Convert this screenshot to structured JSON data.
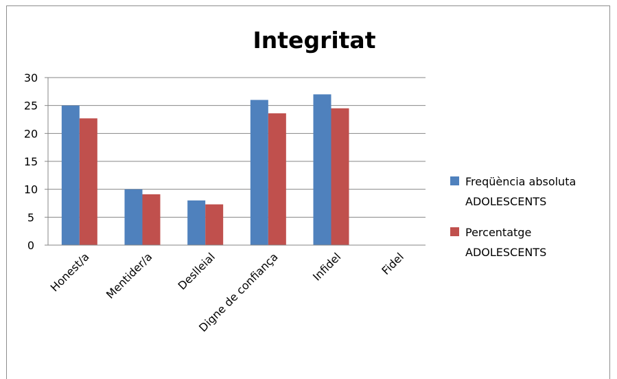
{
  "chart_data": {
    "type": "bar",
    "title": "Integritat",
    "categories": [
      "Honest/a",
      "Mentider/a",
      "Deslleial",
      "Digne de confiança",
      "Infidel",
      "Fidel"
    ],
    "series": [
      {
        "name_lines": [
          "Freqüència absoluta",
          "ADOLESCENTS"
        ],
        "color": "#4f81bd",
        "values": [
          25,
          10,
          8,
          26,
          27,
          0
        ]
      },
      {
        "name_lines": [
          "Percentatge",
          "ADOLESCENTS"
        ],
        "color": "#c0504d",
        "values": [
          22.7,
          9.1,
          7.3,
          23.6,
          24.5,
          0
        ]
      }
    ],
    "ylim": [
      0,
      30
    ],
    "yticks": [
      "0",
      "5",
      "10",
      "15",
      "20",
      "25",
      "30"
    ],
    "grid": true,
    "legend_position": "right",
    "xlabel": "",
    "ylabel": ""
  }
}
